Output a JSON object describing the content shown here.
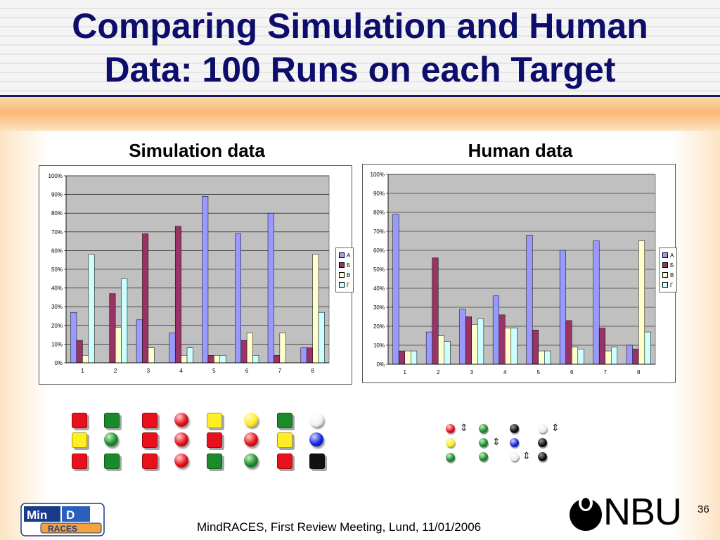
{
  "slide": {
    "title_line1": "Comparing Simulation and Human",
    "title_line2": "Data: 100 Runs on each Target",
    "footer": "MindRACES, First Review Meeting, Lund, 11/01/2006",
    "page_number": "36",
    "nbu_text": "NBU"
  },
  "chart_data": [
    {
      "type": "bar",
      "title": "Simulation data",
      "categories": [
        "1",
        "2",
        "3",
        "4",
        "5",
        "6",
        "7",
        "8"
      ],
      "y_ticks": [
        "0%",
        "10%",
        "20%",
        "30%",
        "40%",
        "50%",
        "60%",
        "70%",
        "80%",
        "90%",
        "100%"
      ],
      "ylim": [
        0,
        100
      ],
      "grid": true,
      "legend_position": "right",
      "series": [
        {
          "name": "А",
          "color": "#9999ff",
          "values": [
            27,
            0,
            23,
            16,
            89,
            69,
            80,
            8
          ]
        },
        {
          "name": "Б",
          "color": "#993366",
          "values": [
            12,
            37,
            69,
            73,
            4,
            12,
            4,
            8
          ]
        },
        {
          "name": "В",
          "color": "#ffffcc",
          "values": [
            4,
            19,
            8,
            4,
            4,
            16,
            16,
            58
          ]
        },
        {
          "name": "Г",
          "color": "#ccffff",
          "values": [
            58,
            45,
            0,
            8,
            4,
            4,
            0,
            27
          ]
        }
      ]
    },
    {
      "type": "bar",
      "title": "Human data",
      "categories": [
        "1",
        "2",
        "3",
        "4",
        "5",
        "6",
        "7",
        "8"
      ],
      "y_ticks": [
        "0%",
        "10%",
        "20%",
        "30%",
        "40%",
        "50%",
        "60%",
        "70%",
        "80%",
        "90%",
        "100%"
      ],
      "ylim": [
        0,
        100
      ],
      "grid": true,
      "legend_position": "right",
      "series": [
        {
          "name": "А",
          "color": "#9999ff",
          "values": [
            79,
            17,
            29,
            36,
            68,
            60,
            65,
            10
          ]
        },
        {
          "name": "Б",
          "color": "#993366",
          "values": [
            7,
            56,
            25,
            26,
            18,
            23,
            19,
            8
          ]
        },
        {
          "name": "В",
          "color": "#ffffcc",
          "values": [
            7,
            15,
            21,
            19,
            7,
            9,
            7,
            65
          ]
        },
        {
          "name": "Г",
          "color": "#ccffff",
          "values": [
            7,
            12,
            24,
            19,
            7,
            8,
            9,
            17
          ]
        }
      ]
    }
  ],
  "targets_simulation": [
    [
      "red-square",
      "green-square",
      "red-square",
      "red-ball",
      "yellow-square",
      "yellow-ball",
      "green-square",
      "white-ball"
    ],
    [
      "yellow-square",
      "green-ball",
      "red-square",
      "red-ball",
      "red-square",
      "red-ball",
      "yellow-square",
      "blue-ball"
    ],
    [
      "red-square",
      "green-square",
      "red-square",
      "red-ball",
      "green-square",
      "green-ball",
      "red-square",
      "black-square"
    ]
  ],
  "colors": {
    "title": "#0d0d6b",
    "red": "#e8101a",
    "green": "#1a8a2a",
    "yellow": "#ffee22",
    "blue": "#1428e0",
    "black": "#111111",
    "white": "#f4f4f4"
  }
}
